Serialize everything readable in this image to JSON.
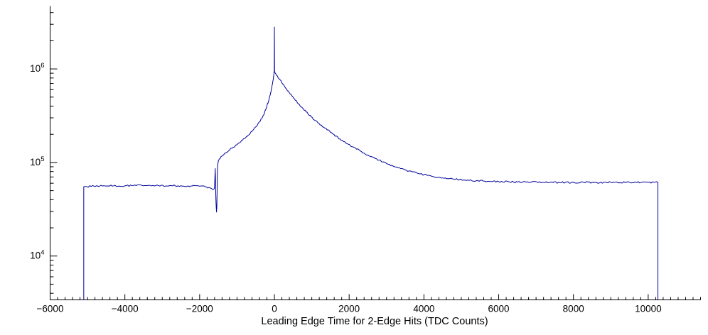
{
  "chart_data": {
    "type": "line",
    "title": "",
    "xlabel": "Leading Edge Time for 2-Edge Hits (TDC Counts)",
    "ylabel": "",
    "x_scale": "linear",
    "y_scale": "log",
    "xlim": [
      -6000,
      11400
    ],
    "ylim": [
      3400,
      4700000
    ],
    "grid": false,
    "legend": false,
    "line_color": "#00009a",
    "axis_color": "#000000",
    "background_color": "#ffffff",
    "x_major_ticks": [
      -6000,
      -4000,
      -2000,
      0,
      2000,
      4000,
      6000,
      8000,
      10000
    ],
    "x_tick_labels": [
      "−6000",
      "−4000",
      "−2000",
      "0",
      "2000",
      "4000",
      "6000",
      "8000",
      "10000"
    ],
    "x_minor_tick_step": 200,
    "y_major_ticks": [
      10000,
      100000,
      1000000
    ],
    "y_tick_exponents": [
      4,
      5,
      6
    ],
    "series": [
      {
        "name": "leading-edge-time-2edge-hits",
        "points": [
          [
            -5100,
            55000
          ],
          [
            -4900,
            55500
          ],
          [
            -4600,
            56000
          ],
          [
            -4300,
            56300
          ],
          [
            -4000,
            56400
          ],
          [
            -3700,
            56500
          ],
          [
            -3400,
            56600
          ],
          [
            -3100,
            56600
          ],
          [
            -2800,
            56600
          ],
          [
            -2500,
            56400
          ],
          [
            -2200,
            56100
          ],
          [
            -2000,
            55800
          ],
          [
            -1850,
            55000
          ],
          [
            -1750,
            54000
          ],
          [
            -1690,
            52800
          ],
          [
            -1650,
            51500
          ],
          [
            -1620,
            51800
          ],
          [
            -1600,
            55000
          ],
          [
            -1590,
            72000
          ],
          [
            -1583,
            86000
          ],
          [
            -1576,
            65000
          ],
          [
            -1568,
            45000
          ],
          [
            -1558,
            34000
          ],
          [
            -1548,
            29500
          ],
          [
            -1540,
            33000
          ],
          [
            -1532,
            52000
          ],
          [
            -1524,
            78000
          ],
          [
            -1516,
            93000
          ],
          [
            -1508,
            99000
          ],
          [
            -1500,
            104000
          ],
          [
            -1400,
            117000
          ],
          [
            -1300,
            127000
          ],
          [
            -1200,
            136000
          ],
          [
            -1100,
            145000
          ],
          [
            -1000,
            155000
          ],
          [
            -900,
            166000
          ],
          [
            -800,
            180000
          ],
          [
            -700,
            196000
          ],
          [
            -600,
            215000
          ],
          [
            -500,
            240000
          ],
          [
            -400,
            272000
          ],
          [
            -300,
            318000
          ],
          [
            -220,
            380000
          ],
          [
            -160,
            450000
          ],
          [
            -110,
            530000
          ],
          [
            -70,
            630000
          ],
          [
            -40,
            740000
          ],
          [
            -20,
            840000
          ],
          [
            -8,
            920000
          ],
          [
            -4,
            950000
          ],
          [
            0,
            2800000
          ],
          [
            4,
            940000
          ],
          [
            20,
            905000
          ],
          [
            60,
            855000
          ],
          [
            120,
            790000
          ],
          [
            200,
            710000
          ],
          [
            300,
            625000
          ],
          [
            420,
            540000
          ],
          [
            560,
            462000
          ],
          [
            720,
            392000
          ],
          [
            900,
            330000
          ],
          [
            1100,
            280000
          ],
          [
            1320,
            238000
          ],
          [
            1560,
            202000
          ],
          [
            1820,
            172000
          ],
          [
            2100,
            147000
          ],
          [
            2400,
            126000
          ],
          [
            2700,
            110000
          ],
          [
            3000,
            97500
          ],
          [
            3300,
            88000
          ],
          [
            3600,
            81000
          ],
          [
            3900,
            75500
          ],
          [
            4200,
            71500
          ],
          [
            4500,
            68500
          ],
          [
            4800,
            66300
          ],
          [
            5100,
            64800
          ],
          [
            5400,
            63700
          ],
          [
            5700,
            62900
          ],
          [
            6000,
            62300
          ],
          [
            6400,
            61800
          ],
          [
            6800,
            61500
          ],
          [
            7200,
            61300
          ],
          [
            7600,
            61200
          ],
          [
            8000,
            61200
          ],
          [
            8500,
            61200
          ],
          [
            9000,
            61300
          ],
          [
            9500,
            61400
          ],
          [
            10000,
            61400
          ],
          [
            10260,
            61400
          ]
        ]
      }
    ]
  }
}
